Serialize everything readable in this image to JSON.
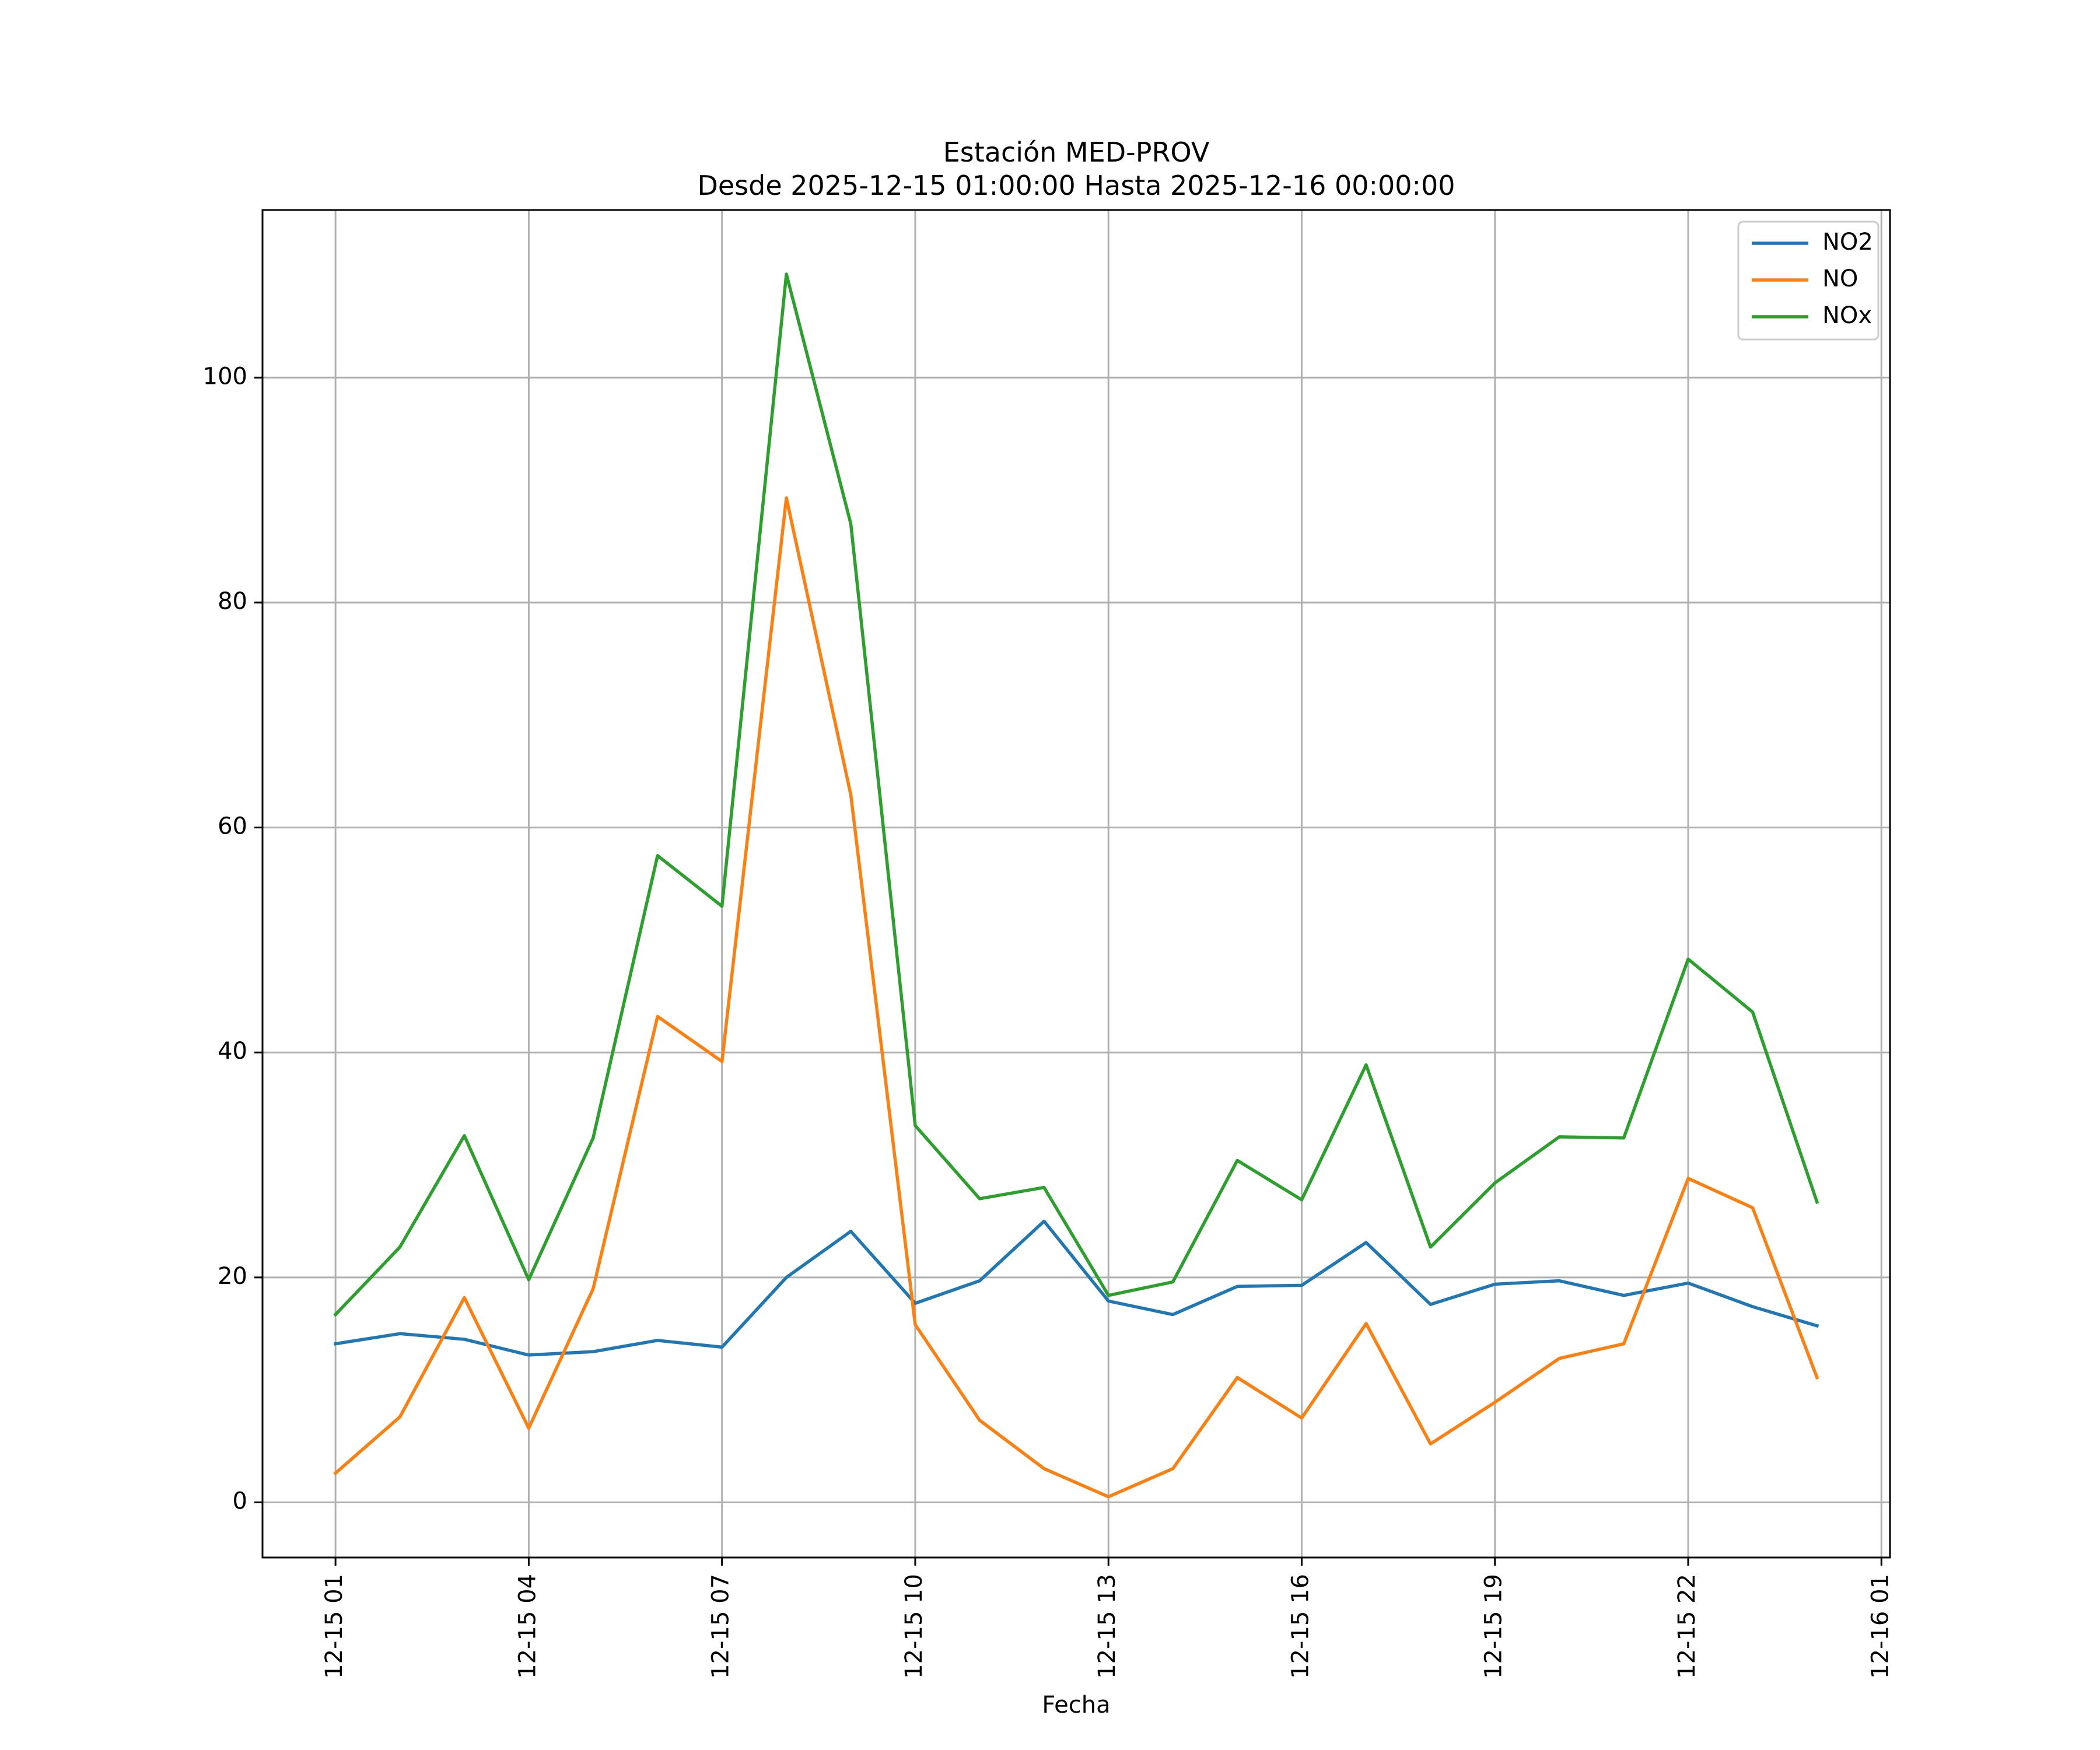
{
  "chart_data": {
    "type": "line",
    "title": "Estación MED-PROV",
    "subtitle": "Desde 2025-12-15 01:00:00 Hasta 2025-12-16 00:00:00",
    "xlabel": "Fecha",
    "ylabel": "",
    "x": [
      "2025-12-15 01:00",
      "2025-12-15 02:00",
      "2025-12-15 03:00",
      "2025-12-15 04:00",
      "2025-12-15 05:00",
      "2025-12-15 06:00",
      "2025-12-15 07:00",
      "2025-12-15 08:00",
      "2025-12-15 09:00",
      "2025-12-15 10:00",
      "2025-12-15 11:00",
      "2025-12-15 12:00",
      "2025-12-15 13:00",
      "2025-12-15 14:00",
      "2025-12-15 15:00",
      "2025-12-15 16:00",
      "2025-12-15 17:00",
      "2025-12-15 18:00",
      "2025-12-15 19:00",
      "2025-12-15 20:00",
      "2025-12-15 21:00",
      "2025-12-15 22:00",
      "2025-12-15 23:00",
      "2025-12-16 00:00"
    ],
    "x_ticks": [
      "12-15 01",
      "12-15 04",
      "12-15 07",
      "12-15 10",
      "12-15 13",
      "12-15 16",
      "12-15 19",
      "12-15 22",
      "12-16 01"
    ],
    "y_ticks": [
      0,
      20,
      40,
      60,
      80,
      100
    ],
    "xlim": [
      "2025-12-14 23:52",
      "2025-12-16 01:08"
    ],
    "ylim": [
      -4.9,
      114.9
    ],
    "grid": true,
    "legend_position": "top-right",
    "series": [
      {
        "name": "NO2",
        "color": "#1f77b4",
        "values": [
          14.1,
          15.0,
          14.5,
          13.1,
          13.4,
          14.4,
          13.8,
          20.0,
          24.1,
          17.7,
          19.7,
          25.0,
          17.9,
          16.7,
          19.2,
          19.3,
          23.1,
          17.6,
          19.4,
          19.7,
          18.4,
          19.5,
          17.4,
          15.7
        ]
      },
      {
        "name": "NO",
        "color": "#ff7f0e",
        "values": [
          2.6,
          7.6,
          18.2,
          6.6,
          19.0,
          43.2,
          39.2,
          89.3,
          62.9,
          15.8,
          7.3,
          3.0,
          0.5,
          3.0,
          11.1,
          7.5,
          15.9,
          5.2,
          8.9,
          12.8,
          14.1,
          28.8,
          26.2,
          11.1
        ]
      },
      {
        "name": "NOx",
        "color": "#2ca02c",
        "values": [
          16.7,
          22.7,
          32.6,
          19.8,
          32.4,
          57.5,
          53.0,
          109.2,
          87.0,
          33.5,
          27.0,
          28.0,
          18.4,
          19.6,
          30.4,
          26.9,
          38.9,
          22.7,
          28.4,
          32.5,
          32.4,
          48.3,
          43.6,
          26.7
        ]
      }
    ]
  }
}
